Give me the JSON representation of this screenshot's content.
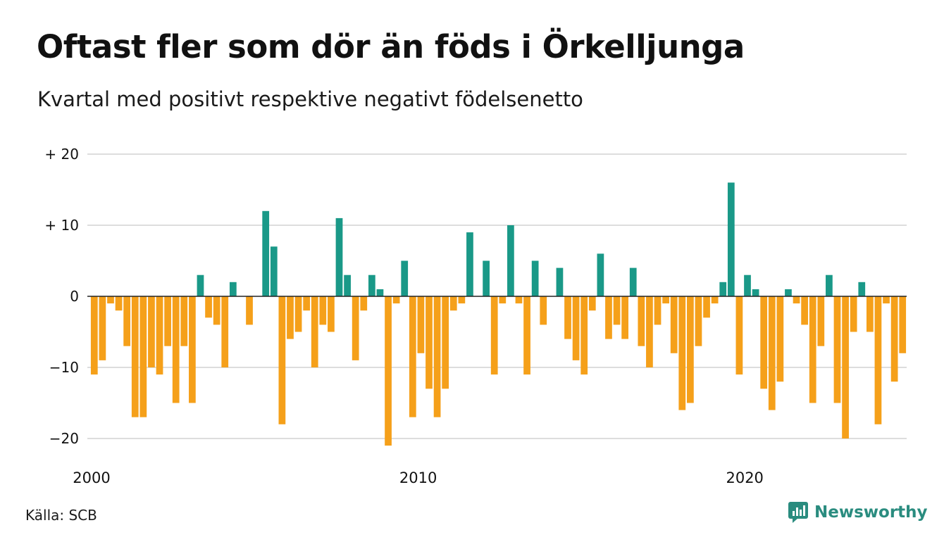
{
  "title": "Oftast fler som dör än föds i Örkelljunga",
  "subtitle": "Kvartal med positivt respektive negativt födelsenetto",
  "source": "Källa: SCB",
  "brand": {
    "name": "Newsworthy",
    "icon": "newsworthy-logo-icon"
  },
  "colors": {
    "positive": "#1a9988",
    "negative": "#f5a01a",
    "grid": "#dddddd",
    "text": "#111111",
    "brand": "#2a8c7f"
  },
  "chart_data": {
    "type": "bar",
    "ylim": [
      -23,
      22
    ],
    "yticks": [
      {
        "value": 20,
        "label": "+ 20"
      },
      {
        "value": 10,
        "label": "+ 10"
      },
      {
        "value": 0,
        "label": "0"
      },
      {
        "value": -10,
        "label": "−10"
      },
      {
        "value": -20,
        "label": "−20"
      }
    ],
    "xticks": [
      {
        "index": 0,
        "label": "2000"
      },
      {
        "index": 40,
        "label": "2010"
      },
      {
        "index": 80,
        "label": "2020"
      }
    ],
    "grid": true,
    "x_start": "2000 Q1",
    "frequency": "quarterly",
    "values": [
      -11,
      -9,
      -1,
      -2,
      -7,
      -17,
      -17,
      -10,
      -11,
      -7,
      -15,
      -7,
      -15,
      3,
      -3,
      -4,
      -10,
      2,
      0,
      -4,
      0,
      12,
      7,
      -18,
      -6,
      -5,
      -2,
      -10,
      -4,
      -5,
      11,
      3,
      -9,
      -2,
      3,
      1,
      -21,
      -1,
      5,
      -17,
      -8,
      -13,
      -17,
      -13,
      -2,
      -1,
      9,
      0,
      5,
      -11,
      -1,
      10,
      -1,
      -11,
      5,
      -4,
      0,
      4,
      -6,
      -9,
      -11,
      -2,
      6,
      -6,
      -4,
      -6,
      4,
      -7,
      -10,
      -4,
      -1,
      -8,
      -16,
      -15,
      -7,
      -3,
      -1,
      2,
      16,
      -11,
      3,
      1,
      -13,
      -16,
      -12,
      1,
      -1,
      -4,
      -15,
      -7,
      3,
      -15,
      -20,
      -5,
      2,
      -5,
      -18,
      -1,
      -12,
      -8
    ]
  }
}
